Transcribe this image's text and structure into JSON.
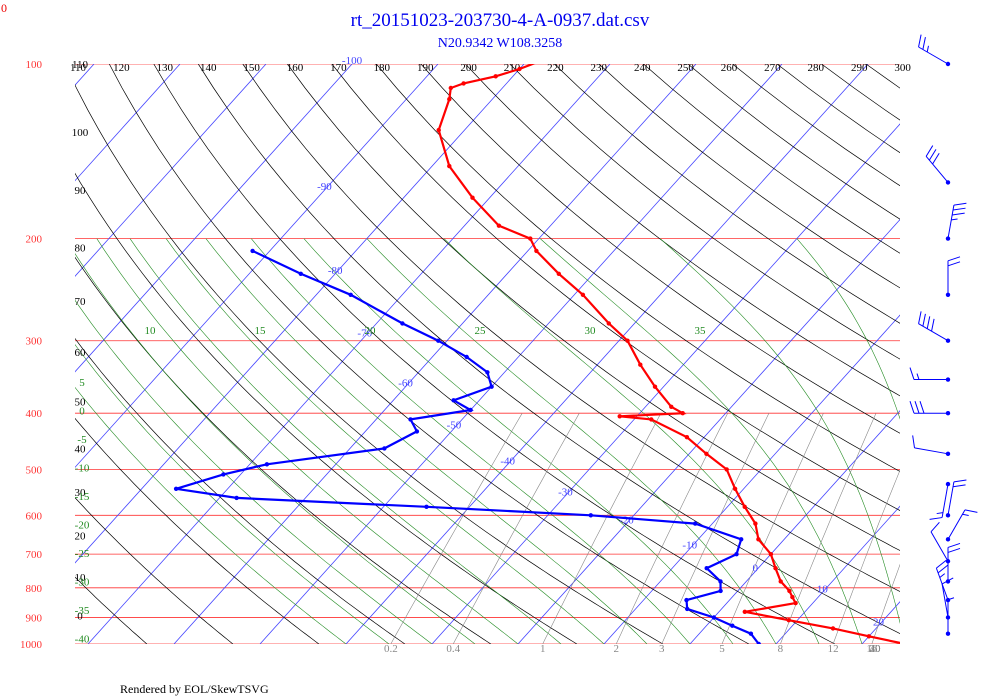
{
  "chart_data": {
    "type": "line",
    "title": "rt_20151023-203730-4-A-0937.dat.csv",
    "subtitle": "N20.9342 W108.3258",
    "footer": "Rendered by EOL/SkewTSVG",
    "corner_label": "0",
    "colors": {
      "temperature": "#ff0000",
      "dewpoint": "#0000ff",
      "isobar": "#ff3333",
      "isotherm": "#4444ff",
      "dry_adiabat": "#000000",
      "moist_adiabat": "#228b22",
      "mixing_ratio": "#888888",
      "wind_barb": "#0000ff",
      "title": "#0000ee"
    },
    "pressure_labels": [
      {
        "p": 100,
        "label": "100"
      },
      {
        "p": 200,
        "label": "200"
      },
      {
        "p": 300,
        "label": "300"
      },
      {
        "p": 400,
        "label": "400"
      },
      {
        "p": 500,
        "label": "500"
      },
      {
        "p": 600,
        "label": "600"
      },
      {
        "p": 700,
        "label": "700"
      },
      {
        "p": 800,
        "label": "800"
      },
      {
        "p": 900,
        "label": "900"
      },
      {
        "p": 1000,
        "label": "1000"
      }
    ],
    "isotherm_labels": [
      "-100",
      "-90",
      "-80",
      "-70",
      "-60",
      "-50",
      "-40",
      "-30",
      "-20",
      "-10",
      "0",
      "10",
      "20",
      "30"
    ],
    "isotherm_values": [
      -100,
      -90,
      -80,
      -70,
      -60,
      -50,
      -40,
      -30,
      -20,
      -10,
      0,
      10,
      20,
      30
    ],
    "theta_top": [
      "110",
      "120",
      "130",
      "140",
      "150",
      "160",
      "170",
      "180",
      "190",
      "200",
      "210",
      "220",
      "230",
      "240",
      "250",
      "260",
      "270",
      "280",
      "290",
      "300"
    ],
    "theta_left": [
      {
        "p": 100,
        "label": "110"
      },
      {
        "p": 131,
        "label": "100"
      },
      {
        "p": 165,
        "label": "90"
      },
      {
        "p": 207,
        "label": "80"
      },
      {
        "p": 256,
        "label": "70"
      },
      {
        "p": 314,
        "label": "60"
      },
      {
        "p": 382,
        "label": "50"
      },
      {
        "p": 460,
        "label": "40"
      },
      {
        "p": 547,
        "label": "30"
      },
      {
        "p": 650,
        "label": "20"
      },
      {
        "p": 766,
        "label": "10"
      },
      {
        "p": 893,
        "label": "0"
      }
    ],
    "theta_top_values": [
      110,
      120,
      130,
      140,
      150,
      160,
      170,
      180,
      190,
      200,
      210,
      220,
      230,
      240,
      250,
      260,
      270,
      280,
      290,
      300
    ],
    "moist_labels": [
      "10",
      "15",
      "20",
      "25",
      "30",
      "35"
    ],
    "moist_values": [
      10,
      15,
      20,
      25,
      30,
      35
    ],
    "left_moist_labels": [
      "5",
      "0",
      "-5",
      "-10",
      "-15",
      "-20",
      "-25",
      "-30",
      "-35",
      "-40"
    ],
    "mixing_ratio_labels": [
      "0.2",
      "0.4",
      "1",
      "2",
      "3",
      "5",
      "8",
      "12",
      "16",
      "20",
      "30",
      "40"
    ],
    "temperature": [
      {
        "p": 91,
        "t": -74
      },
      {
        "p": 94,
        "t": -76
      },
      {
        "p": 98,
        "t": -78
      },
      {
        "p": 102,
        "t": -80
      },
      {
        "p": 105,
        "t": -82
      },
      {
        "p": 108,
        "t": -85
      },
      {
        "p": 110,
        "t": -86
      },
      {
        "p": 115,
        "t": -85
      },
      {
        "p": 130,
        "t": -83
      },
      {
        "p": 150,
        "t": -78
      },
      {
        "p": 170,
        "t": -72
      },
      {
        "p": 190,
        "t": -66
      },
      {
        "p": 200,
        "t": -61
      },
      {
        "p": 210,
        "t": -59
      },
      {
        "p": 230,
        "t": -54
      },
      {
        "p": 250,
        "t": -49
      },
      {
        "p": 280,
        "t": -43
      },
      {
        "p": 300,
        "t": -39
      },
      {
        "p": 330,
        "t": -35
      },
      {
        "p": 360,
        "t": -31
      },
      {
        "p": 390,
        "t": -27
      },
      {
        "p": 400,
        "t": -25
      },
      {
        "p": 405,
        "t": -32
      },
      {
        "p": 410,
        "t": -28
      },
      {
        "p": 440,
        "t": -22
      },
      {
        "p": 470,
        "t": -18
      },
      {
        "p": 500,
        "t": -14
      },
      {
        "p": 540,
        "t": -11
      },
      {
        "p": 580,
        "t": -8
      },
      {
        "p": 620,
        "t": -5
      },
      {
        "p": 660,
        "t": -3
      },
      {
        "p": 700,
        "t": 0
      },
      {
        "p": 740,
        "t": 2
      },
      {
        "p": 780,
        "t": 4
      },
      {
        "p": 810,
        "t": 6
      },
      {
        "p": 830,
        "t": 7
      },
      {
        "p": 850,
        "t": 8
      },
      {
        "p": 880,
        "t": 3
      },
      {
        "p": 910,
        "t": 9
      },
      {
        "p": 940,
        "t": 15
      },
      {
        "p": 970,
        "t": 20
      },
      {
        "p": 1000,
        "t": 25
      }
    ],
    "dewpoint": [
      {
        "p": 210,
        "t": -92
      },
      {
        "p": 230,
        "t": -84
      },
      {
        "p": 250,
        "t": -76
      },
      {
        "p": 280,
        "t": -67
      },
      {
        "p": 300,
        "t": -61
      },
      {
        "p": 320,
        "t": -56
      },
      {
        "p": 340,
        "t": -52
      },
      {
        "p": 360,
        "t": -50
      },
      {
        "p": 380,
        "t": -53
      },
      {
        "p": 395,
        "t": -50
      },
      {
        "p": 410,
        "t": -56
      },
      {
        "p": 430,
        "t": -54
      },
      {
        "p": 460,
        "t": -56
      },
      {
        "p": 490,
        "t": -68
      },
      {
        "p": 510,
        "t": -72
      },
      {
        "p": 540,
        "t": -76
      },
      {
        "p": 560,
        "t": -68
      },
      {
        "p": 580,
        "t": -45
      },
      {
        "p": 600,
        "t": -25
      },
      {
        "p": 620,
        "t": -12
      },
      {
        "p": 660,
        "t": -5
      },
      {
        "p": 700,
        "t": -4
      },
      {
        "p": 740,
        "t": -6
      },
      {
        "p": 780,
        "t": -3
      },
      {
        "p": 810,
        "t": -2
      },
      {
        "p": 840,
        "t": -5
      },
      {
        "p": 870,
        "t": -4
      },
      {
        "p": 900,
        "t": 0
      },
      {
        "p": 930,
        "t": 3
      },
      {
        "p": 960,
        "t": 6
      },
      {
        "p": 1000,
        "t": 8
      }
    ],
    "wind_levels": [
      {
        "p": 100,
        "dir": 300,
        "spd": 25
      },
      {
        "p": 160,
        "dir": 320,
        "spd": 30
      },
      {
        "p": 200,
        "dir": 10,
        "spd": 35
      },
      {
        "p": 250,
        "dir": 0,
        "spd": 20
      },
      {
        "p": 300,
        "dir": 300,
        "spd": 40
      },
      {
        "p": 350,
        "dir": 270,
        "spd": 15
      },
      {
        "p": 400,
        "dir": 270,
        "spd": 30
      },
      {
        "p": 470,
        "dir": 280,
        "spd": 10
      },
      {
        "p": 530,
        "dir": 190,
        "spd": 15
      },
      {
        "p": 600,
        "dir": 10,
        "spd": 20
      },
      {
        "p": 660,
        "dir": 30,
        "spd": 15
      },
      {
        "p": 720,
        "dir": 330,
        "spd": 10
      },
      {
        "p": 780,
        "dir": 0,
        "spd": 20
      },
      {
        "p": 840,
        "dir": 340,
        "spd": 25
      },
      {
        "p": 900,
        "dir": 350,
        "spd": 10
      },
      {
        "p": 960,
        "dir": 0,
        "spd": 5
      }
    ]
  }
}
